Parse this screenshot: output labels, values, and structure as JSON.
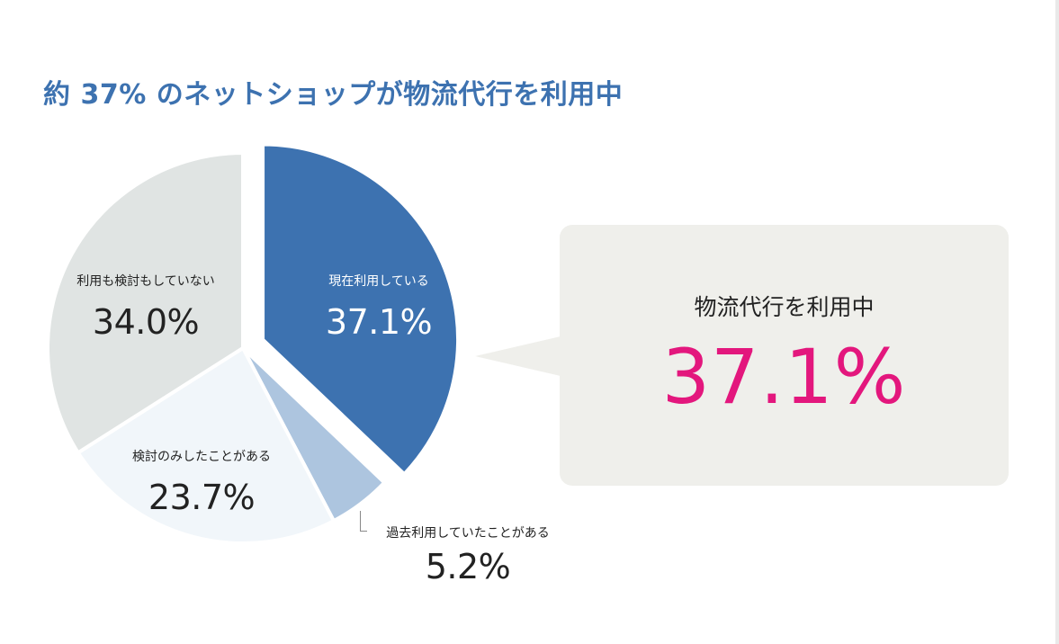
{
  "title": "約 37% のネットショップが物流代行を利用中",
  "chart_data": {
    "type": "pie",
    "slices": [
      {
        "label": "現在利用している",
        "value": 37.1,
        "display": "37.1%",
        "color": "#3d72b0",
        "exploded": true
      },
      {
        "label": "過去利用していたことがある",
        "value": 5.2,
        "display": "5.2%",
        "color": "#adc5df",
        "exploded": false
      },
      {
        "label": "検討のみしたことがある",
        "value": 23.7,
        "display": "23.7%",
        "color": "#f1f6fa",
        "exploded": false
      },
      {
        "label": "利用も検討もしていない",
        "value": 34.0,
        "display": "34.0%",
        "color": "#e0e4e3",
        "exploded": false
      }
    ]
  },
  "callout": {
    "heading": "物流代行を利用中",
    "value": "37.1%",
    "value_color": "#e3177d"
  }
}
